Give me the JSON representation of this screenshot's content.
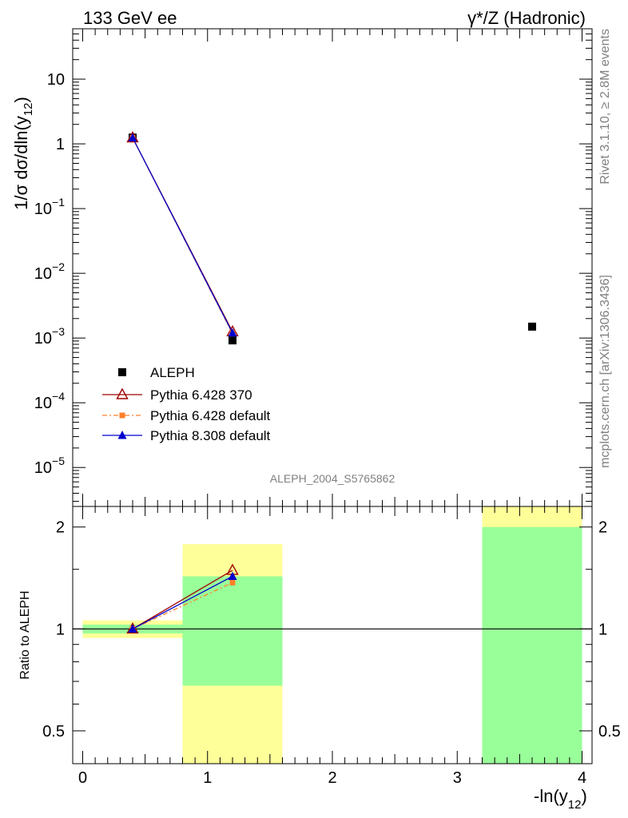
{
  "header": {
    "left_title": "133 GeV ee",
    "right_title": "γ*/Z (Hadronic)"
  },
  "side_text": {
    "rivet": "Rivet 3.1.10, ≥ 2.8M events",
    "mcplots": "mcplots.cern.ch [arXiv:1306.3436]"
  },
  "analysis_label": "ALEPH_2004_S5765862",
  "colors": {
    "aleph": "#000000",
    "pythia6_370": "#a00000",
    "pythia6_default": "#ff7f2a",
    "pythia8_default": "#0000cc",
    "band_inner": "#99ff99",
    "band_outer": "#ffff99"
  },
  "chart_data": [
    {
      "type": "scatter",
      "panel": "main",
      "ylabel": "1/σ dσ/dln(y12)",
      "yscale": "log",
      "ylim": [
        2.5e-06,
        60
      ],
      "xlim": [
        -0.08,
        4.08
      ],
      "y_tick_labels": [
        "10",
        "1",
        "10−1",
        "10−2",
        "10−3",
        "10−4",
        "10−5"
      ],
      "legend": {
        "placement": "bottom-left",
        "entries": [
          "ALEPH",
          "Pythia 6.428 370",
          "Pythia 6.428 default",
          "Pythia 8.308 default"
        ]
      },
      "series": [
        {
          "name": "ALEPH",
          "x": [
            0.4,
            1.2,
            3.6
          ],
          "y": [
            1.25,
            0.00092,
            0.0015
          ],
          "marker": "square"
        },
        {
          "name": "Pythia 6.428 370",
          "x": [
            0.4,
            1.2
          ],
          "y": [
            1.24,
            0.00125
          ],
          "marker": "open-triangle"
        },
        {
          "name": "Pythia 6.428 default",
          "x": [
            0.4,
            1.2
          ],
          "y": [
            1.24,
            0.00117
          ],
          "marker": "small-square"
        },
        {
          "name": "Pythia 8.308 default",
          "x": [
            0.4,
            1.2
          ],
          "y": [
            1.24,
            0.0012
          ],
          "marker": "triangle"
        }
      ]
    },
    {
      "type": "line",
      "panel": "ratio",
      "ylabel": "Ratio to ALEPH",
      "xlabel": "-ln(y12)",
      "yscale": "log",
      "ylim": [
        0.4,
        2.3
      ],
      "xlim": [
        -0.08,
        4.08
      ],
      "x_ticks": [
        0,
        1,
        2,
        3,
        4
      ],
      "y_ticks": [
        0.5,
        1,
        2
      ],
      "reference": 1,
      "bands": [
        {
          "x0": 0.0,
          "x1": 0.8,
          "inner": [
            0.97,
            1.03
          ],
          "outer": [
            0.94,
            1.06
          ]
        },
        {
          "x0": 0.8,
          "x1": 1.6,
          "inner": [
            0.68,
            1.43
          ],
          "outer": [
            0.3,
            1.78
          ]
        },
        {
          "x0": 3.2,
          "x1": 4.0,
          "inner": [
            0.3,
            2.0
          ],
          "outer": [
            0.3,
            2.4
          ]
        }
      ],
      "series": [
        {
          "name": "Pythia 6.428 370",
          "x": [
            0.4,
            1.2
          ],
          "y": [
            1.0,
            1.49
          ]
        },
        {
          "name": "Pythia 6.428 default",
          "x": [
            0.4,
            1.2
          ],
          "y": [
            1.0,
            1.37
          ]
        },
        {
          "name": "Pythia 8.308 default",
          "x": [
            0.4,
            1.2
          ],
          "y": [
            1.0,
            1.43
          ]
        }
      ]
    }
  ]
}
